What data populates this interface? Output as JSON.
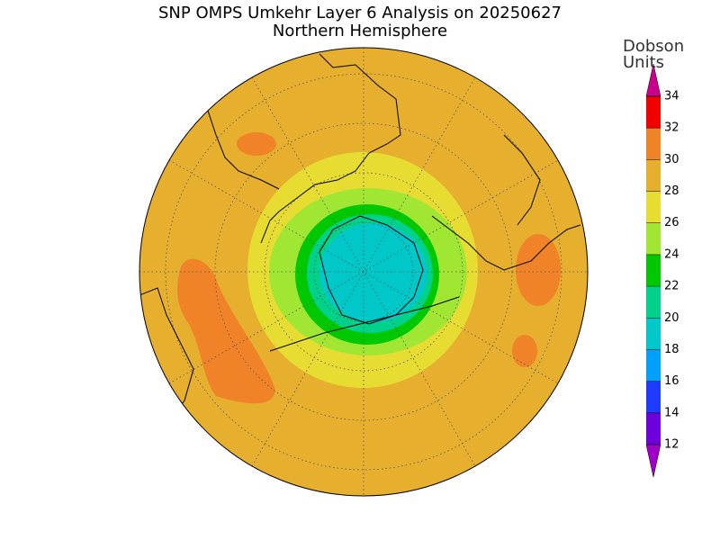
{
  "title": "SNP OMPS Umkehr Layer 6 Analysis on 20250627",
  "subtitle": "Northern Hemisphere",
  "colorbar": {
    "unit_label": [
      "Dobson",
      "Units"
    ],
    "ticks": [
      12,
      14,
      16,
      18,
      20,
      22,
      24,
      26,
      28,
      30,
      32,
      34
    ],
    "colors": [
      "#6e00dc",
      "#1e3cff",
      "#00a0ff",
      "#00c8c8",
      "#00d28c",
      "#00c800",
      "#a0e632",
      "#e6dc32",
      "#e6af2d",
      "#f08228",
      "#f00000"
    ],
    "under_color": "#a000c8",
    "over_color": "#c8008c"
  }
}
